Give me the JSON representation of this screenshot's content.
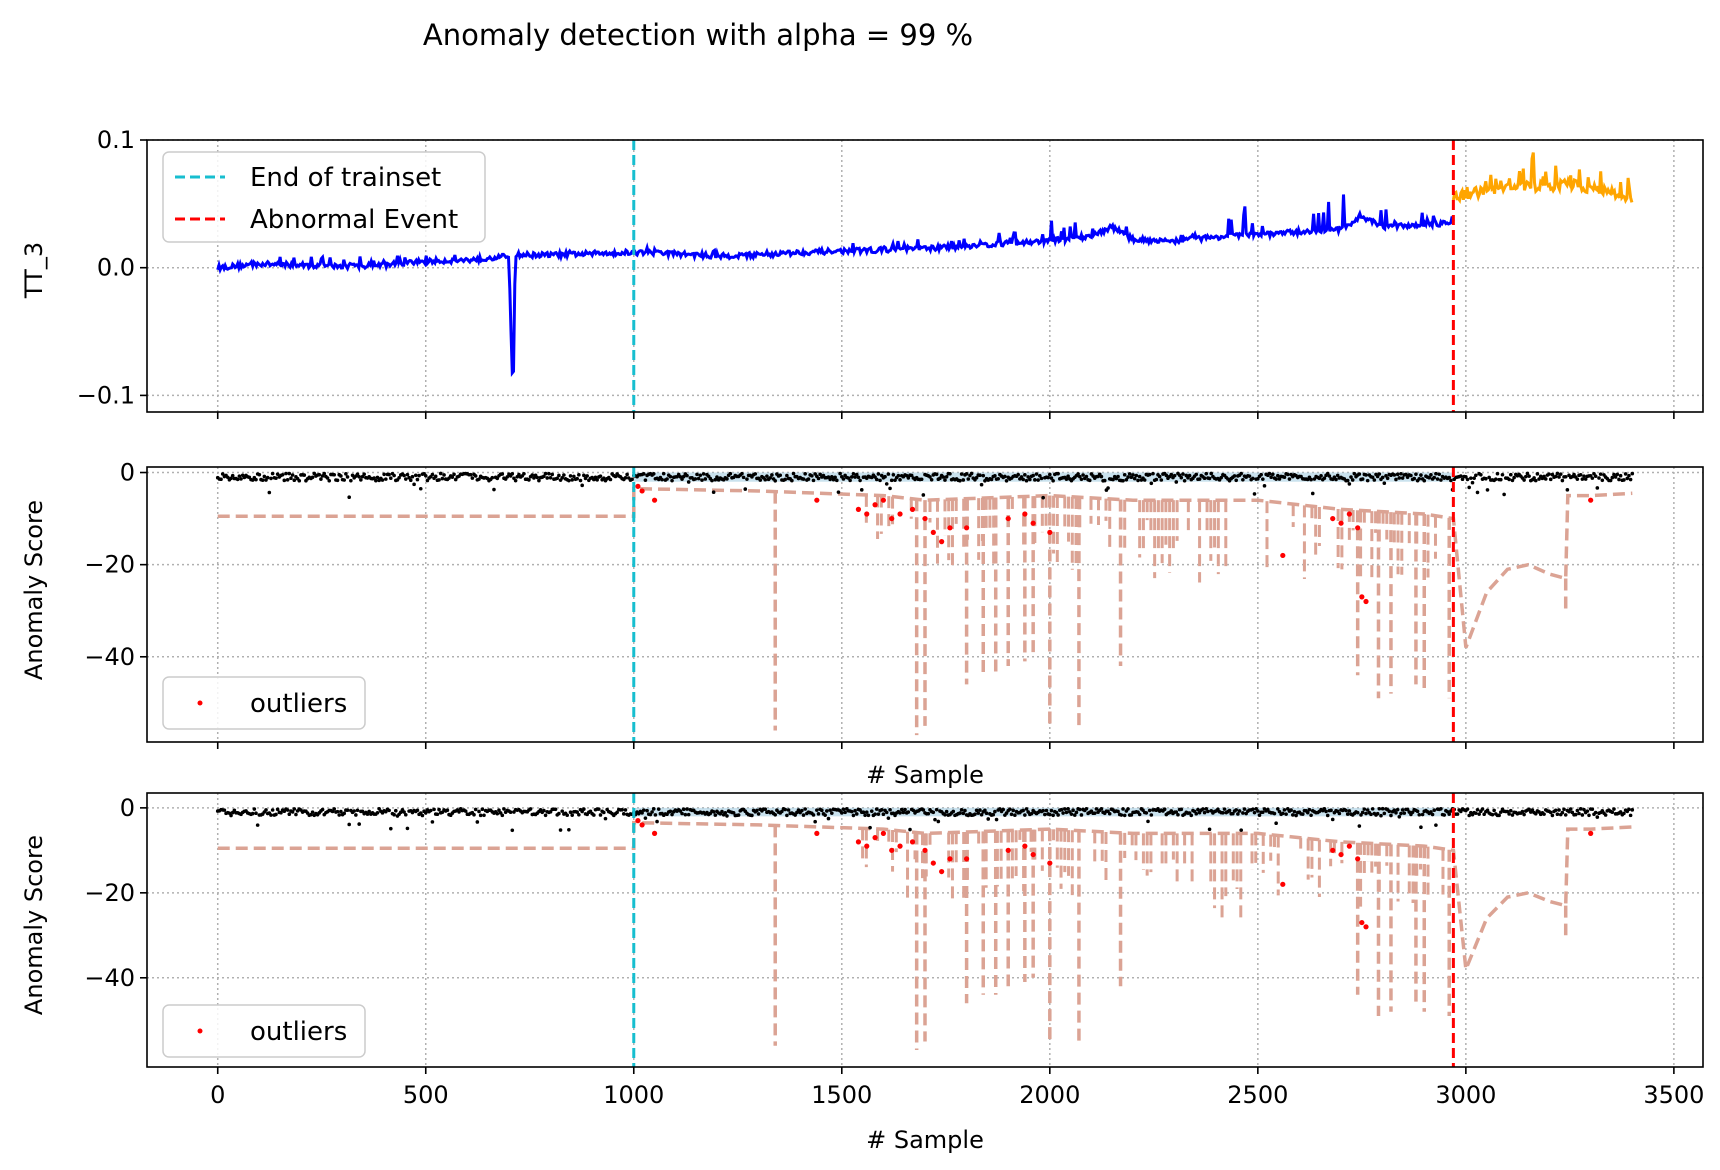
{
  "figure": {
    "title": "Anomaly detection with alpha = 99 %"
  },
  "colors": {
    "normal_signal": "#0000ff",
    "abnormal_signal": "#ffa500",
    "trainset_line": "#17becf",
    "event_line": "#ff0000",
    "threshold_line": "#dba394",
    "score_points": "#000000",
    "outliers": "#ff0000",
    "band_fill": "#a6cee3"
  },
  "chart_data": [
    {
      "type": "line",
      "name": "top",
      "ylabel": "TT_3",
      "xlabel": "",
      "xlim": [
        -170,
        3570
      ],
      "ylim": [
        -0.113,
        0.1
      ],
      "xticks": [
        0,
        500,
        1000,
        1500,
        2000,
        2500,
        3000,
        3500
      ],
      "xtick_labels": [
        "",
        "",
        "",
        "",
        "",
        "",
        "",
        ""
      ],
      "yticks": [
        -0.1,
        0.0,
        0.1
      ],
      "ytick_labels": [
        "−0.1",
        "0.0",
        "0.1"
      ],
      "grid": true,
      "legend": {
        "position": "upper-left",
        "entries": [
          "End of trainset",
          "Abnormal Event"
        ]
      },
      "vlines": [
        {
          "x": 1000,
          "label": "End of trainset"
        },
        {
          "x": 2970,
          "label": "Abnormal Event"
        }
      ],
      "normal_series": {
        "x": [
          0,
          100,
          200,
          300,
          400,
          500,
          600,
          700,
          705,
          710,
          715,
          800,
          900,
          1000,
          1100,
          1200,
          1300,
          1400,
          1500,
          1600,
          1700,
          1800,
          1900,
          2000,
          2100,
          2150,
          2200,
          2300,
          2400,
          2500,
          2600,
          2700,
          2750,
          2800,
          2900,
          2970
        ],
        "y": [
          0.0,
          0.003,
          0.002,
          0.001,
          0.002,
          0.005,
          0.006,
          0.009,
          -0.05,
          -0.104,
          0.01,
          0.01,
          0.011,
          0.012,
          0.011,
          0.009,
          0.01,
          0.012,
          0.013,
          0.014,
          0.015,
          0.017,
          0.019,
          0.021,
          0.025,
          0.032,
          0.022,
          0.021,
          0.024,
          0.026,
          0.028,
          0.03,
          0.04,
          0.032,
          0.034,
          0.035
        ],
        "peaks": [
          0.006,
          0.01,
          0.008,
          0.009,
          0.012,
          0.012,
          0.011,
          0.012,
          0.012,
          0.015,
          0.016,
          0.016,
          0.018,
          0.02,
          0.022,
          0.022,
          0.025,
          0.03,
          0.038,
          0.032,
          0.035,
          0.04,
          0.05,
          0.048,
          0.06,
          0.05,
          0.046
        ]
      },
      "abnormal_series": {
        "x": [
          2970,
          3000,
          3050,
          3100,
          3150,
          3200,
          3250,
          3300,
          3350,
          3400
        ],
        "y": [
          0.055,
          0.057,
          0.06,
          0.062,
          0.064,
          0.063,
          0.066,
          0.062,
          0.058,
          0.055
        ],
        "peaks": [
          0.062,
          0.07,
          0.075,
          0.08,
          0.091,
          0.085,
          0.082,
          0.078,
          0.072,
          0.07
        ]
      }
    },
    {
      "type": "scatter",
      "name": "middle",
      "ylabel": "Anomaly Score",
      "xlabel": "# Sample",
      "xlim": [
        -170,
        3570
      ],
      "ylim": [
        -58.5,
        1.2
      ],
      "xticks": [
        0,
        500,
        1000,
        1500,
        2000,
        2500,
        3000,
        3500
      ],
      "xtick_labels": [
        "",
        "",
        "",
        "",
        "",
        "",
        "",
        ""
      ],
      "yticks": [
        0,
        -20,
        -40
      ],
      "ytick_labels": [
        "0",
        "−20",
        "−40"
      ],
      "grid": true,
      "legend": {
        "position": "lower-left",
        "entries": [
          "outliers"
        ]
      },
      "vlines": [
        {
          "x": 1000
        },
        {
          "x": 2970
        }
      ],
      "threshold_baseline": [
        [
          0,
          -9.5
        ],
        [
          1000,
          -9.5
        ],
        [
          1000,
          -3.5
        ],
        [
          1300,
          -4
        ],
        [
          1600,
          -5
        ],
        [
          1700,
          -6
        ],
        [
          2000,
          -5
        ],
        [
          2200,
          -6
        ],
        [
          2500,
          -6
        ],
        [
          2700,
          -8
        ],
        [
          2900,
          -9
        ],
        [
          2970,
          -10
        ],
        [
          3000,
          -38
        ],
        [
          3050,
          -26
        ],
        [
          3100,
          -21
        ],
        [
          3150,
          -20
        ],
        [
          3200,
          -22
        ],
        [
          3240,
          -23
        ],
        [
          3245,
          -5
        ],
        [
          3300,
          -5
        ],
        [
          3400,
          -4.5
        ]
      ],
      "threshold_drops": [
        [
          1340,
          -56
        ],
        [
          1680,
          -57
        ],
        [
          1700,
          -55
        ],
        [
          1800,
          -46
        ],
        [
          1840,
          -44
        ],
        [
          1870,
          -44
        ],
        [
          1900,
          -42
        ],
        [
          1940,
          -41
        ],
        [
          1960,
          -40
        ],
        [
          2000,
          -55
        ],
        [
          2070,
          -55
        ],
        [
          2170,
          -42
        ],
        [
          2740,
          -44
        ],
        [
          2790,
          -49
        ],
        [
          2820,
          -48
        ],
        [
          2880,
          -46
        ],
        [
          2900,
          -48
        ],
        [
          2960,
          -49
        ],
        [
          3240,
          -30
        ]
      ],
      "outliers": {
        "x": [
          1010,
          1020,
          1050,
          1440,
          1540,
          1560,
          1580,
          1600,
          1620,
          1640,
          1670,
          1700,
          1720,
          1740,
          1760,
          1800,
          1900,
          1940,
          1960,
          2000,
          2560,
          2680,
          2700,
          2720,
          2740,
          2750,
          2760,
          3300
        ],
        "y": [
          -3,
          -4,
          -6,
          -6,
          -8,
          -9,
          -7,
          -6,
          -10,
          -9,
          -8,
          -10,
          -13,
          -15,
          -12,
          -12,
          -10,
          -9,
          -11,
          -13,
          -18,
          -10,
          -11,
          -9,
          -12,
          -27,
          -28,
          -6
        ]
      }
    },
    {
      "type": "scatter",
      "name": "bottom",
      "ylabel": "Anomaly Score",
      "xlabel": "# Sample",
      "xlim": [
        -170,
        3570
      ],
      "ylim": [
        -61,
        3.5
      ],
      "xticks": [
        0,
        500,
        1000,
        1500,
        2000,
        2500,
        3000,
        3500
      ],
      "xtick_labels": [
        "0",
        "500",
        "1000",
        "1500",
        "2000",
        "2500",
        "3000",
        "3500"
      ],
      "yticks": [
        0,
        -20,
        -40
      ],
      "ytick_labels": [
        "0",
        "−20",
        "−40"
      ],
      "grid": true,
      "legend": {
        "position": "lower-left",
        "entries": [
          "outliers"
        ]
      },
      "vlines": [
        {
          "x": 1000
        },
        {
          "x": 2970
        }
      ],
      "threshold_baseline": [
        [
          0,
          -9.5
        ],
        [
          1000,
          -9.5
        ],
        [
          1000,
          -3.5
        ],
        [
          1300,
          -4
        ],
        [
          1600,
          -5
        ],
        [
          1700,
          -6
        ],
        [
          2000,
          -5
        ],
        [
          2200,
          -6
        ],
        [
          2500,
          -6
        ],
        [
          2700,
          -8
        ],
        [
          2900,
          -9
        ],
        [
          2970,
          -10
        ],
        [
          3000,
          -38
        ],
        [
          3050,
          -26
        ],
        [
          3100,
          -21
        ],
        [
          3150,
          -20
        ],
        [
          3200,
          -22
        ],
        [
          3240,
          -23
        ],
        [
          3245,
          -5
        ],
        [
          3300,
          -5
        ],
        [
          3400,
          -4.5
        ]
      ],
      "threshold_drops": [
        [
          1340,
          -56
        ],
        [
          1680,
          -57
        ],
        [
          1700,
          -55
        ],
        [
          1800,
          -46
        ],
        [
          1840,
          -44
        ],
        [
          1870,
          -44
        ],
        [
          1900,
          -42
        ],
        [
          1940,
          -41
        ],
        [
          1960,
          -40
        ],
        [
          2000,
          -55
        ],
        [
          2070,
          -55
        ],
        [
          2170,
          -42
        ],
        [
          2740,
          -44
        ],
        [
          2790,
          -49
        ],
        [
          2820,
          -48
        ],
        [
          2880,
          -46
        ],
        [
          2900,
          -48
        ],
        [
          2960,
          -49
        ],
        [
          3240,
          -30
        ]
      ],
      "outliers": {
        "x": [
          1010,
          1020,
          1050,
          1440,
          1540,
          1560,
          1580,
          1600,
          1620,
          1640,
          1670,
          1700,
          1720,
          1740,
          1760,
          1800,
          1900,
          1940,
          1960,
          2000,
          2560,
          2680,
          2700,
          2720,
          2740,
          2750,
          2760,
          3300
        ],
        "y": [
          -3,
          -4,
          -6,
          -6,
          -8,
          -9,
          -7,
          -6,
          -10,
          -9,
          -8,
          -10,
          -13,
          -15,
          -12,
          -12,
          -10,
          -9,
          -11,
          -13,
          -18,
          -10,
          -11,
          -9,
          -12,
          -27,
          -28,
          -6
        ]
      }
    }
  ]
}
